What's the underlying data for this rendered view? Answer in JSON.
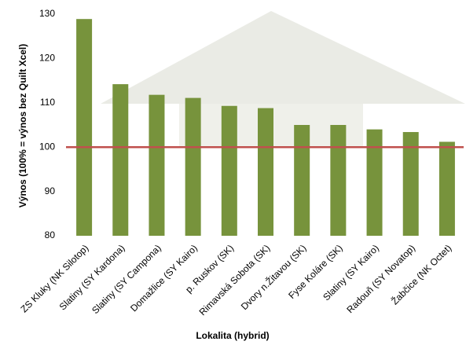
{
  "chart_data": {
    "type": "bar",
    "categories": [
      "ZS Kluky (NK Silotop)",
      "Slatiny (SY Kardona)",
      "Slatiny (SY Campona)",
      "Domažlice (SY Kairo)",
      "p. Ruskov (SK)",
      "Rimavská Sobota (SK)",
      "Dvory n.Žitavou (SK)",
      "Fyse Koláre (SK)",
      "Slatiny (SY Kairo)",
      "Radouň (SY Novatop)",
      "Žabčice (NK Octet)"
    ],
    "values": [
      128.9,
      114.2,
      111.8,
      111.1,
      109.3,
      108.8,
      105.0,
      105.0,
      104.0,
      103.4,
      101.2
    ],
    "color": "#77933c",
    "ylim": [
      80,
      130
    ],
    "yticks": [
      80,
      90,
      100,
      110,
      120,
      130
    ],
    "reference_line": 100,
    "reference_color": "#c0504d",
    "xlabel": "Lokalita (hybrid)",
    "ylabel": "Výnos (100% = výnos bez Quilt Xcel)"
  }
}
